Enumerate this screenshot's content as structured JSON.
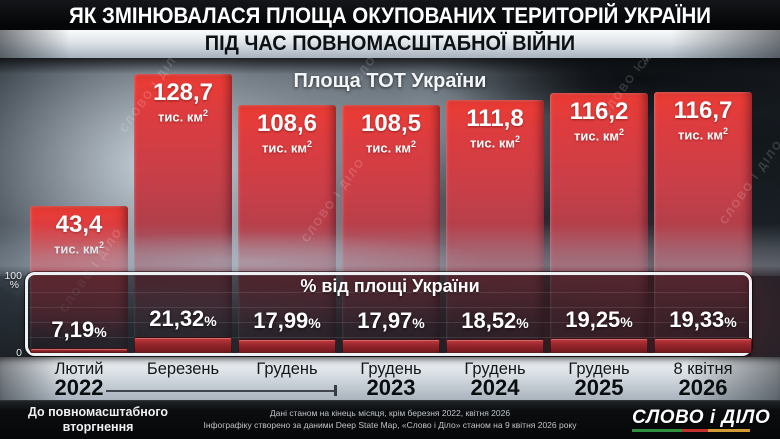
{
  "title": {
    "line1": "ЯК ЗМІНЮВАЛАСЯ ПЛОЩА ОКУПОВАНИХ ТЕРИТОРІЙ УКРАЇНИ",
    "line2": "ПІД ЧАС ПОВНОМАСШТАБНОЇ ВІЙНИ"
  },
  "chart_data": {
    "type": "bar",
    "title": "Площа ТОТ України",
    "unit_label": "тис. км",
    "unit_sup": "2",
    "categories": [
      "Лютий 2022",
      "Березень 2022",
      "Грудень 2022",
      "Грудень 2023",
      "Грудень 2024",
      "Грудень 2025",
      "8 квітня 2026"
    ],
    "series": [
      {
        "name": "Площа ТОТ України, тис. км²",
        "values": [
          43.4,
          128.7,
          108.6,
          108.5,
          111.8,
          116.2,
          116.7
        ],
        "labels": [
          "43,4",
          "128,7",
          "108,6",
          "108,5",
          "111,8",
          "116,2",
          "116,7"
        ]
      },
      {
        "name": "% від площі України",
        "values": [
          7.19,
          21.32,
          17.99,
          17.97,
          18.52,
          19.25,
          19.33
        ],
        "labels": [
          "7,19",
          "21,32",
          "17,99",
          "17,97",
          "18,52",
          "19,25",
          "19,33"
        ]
      }
    ],
    "x_axis": {
      "months": [
        "Лютий",
        "Березень",
        "Грудень",
        "Грудень",
        "Грудень",
        "Грудень",
        "8 квітня"
      ],
      "years": [
        "2022",
        null,
        null,
        "2023",
        "2024",
        "2025",
        "2026"
      ]
    },
    "pct_panel": {
      "title": "% від площі України",
      "y_max_label": "100",
      "y_max_unit": "%",
      "y_min_label": "0",
      "ylim": [
        0,
        100
      ],
      "grid": true
    },
    "legend_position": "none"
  },
  "annotations": {
    "pre_invasion_line1": "До повномасштабного",
    "pre_invasion_line2": "вторгнення",
    "percent_suffix": "%"
  },
  "footer": {
    "note_line1": "Дані станом на кінець місяця, крім березня 2022, квітня 2026",
    "note_line2": "Інфографіку створено за даними Deep State Map, «Слово і Діло» станом на 9 квітня 2026 року",
    "logo_text": "СЛОВО і ДІЛО"
  },
  "watermark_text": "СЛОВО І ДІЛО",
  "colors": {
    "bar_red": "#e03a38",
    "mini_bar_red": "#9c272c",
    "panel_border": "#eef1f4",
    "accent_green": "#2f8f3e",
    "accent_red": "#c4302e",
    "accent_amber": "#d29a33"
  }
}
